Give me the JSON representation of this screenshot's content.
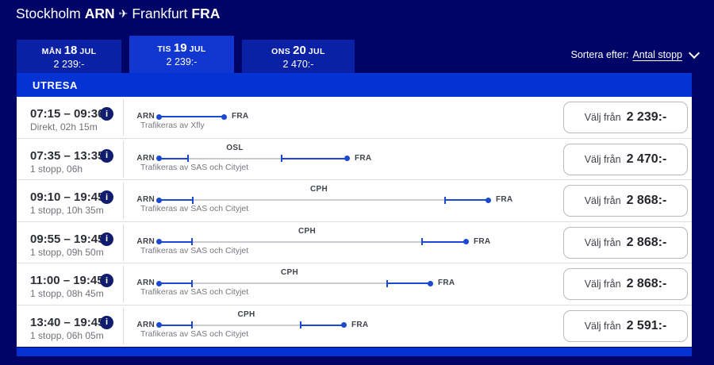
{
  "header": {
    "from_city": "Stockholm",
    "from_code": "ARN",
    "to_city": "Frankfurt",
    "to_code": "FRA"
  },
  "icons": {
    "plane": "✈",
    "info": "i"
  },
  "sort": {
    "label": "Sortera efter:",
    "value": "Antal stopp"
  },
  "date_tabs": [
    {
      "day": "MÅN",
      "daynum": "18",
      "mon": "JUL",
      "price": "2 239:-",
      "selected": false
    },
    {
      "day": "TIS",
      "daynum": "19",
      "mon": "JUL",
      "price": "2 239:-",
      "selected": true
    },
    {
      "day": "ONS",
      "daynum": "20",
      "mon": "JUL",
      "price": "2 470:-",
      "selected": false
    }
  ],
  "section": {
    "title": "UTRESA"
  },
  "buttons": {
    "select_prefix": "Välj från"
  },
  "flights": [
    {
      "times": "07:15 – 09:30",
      "details": "Direkt, 02h 15m",
      "operator": "Trafikeras av Xfly",
      "price": "2 239:-",
      "route": {
        "from": "ARN",
        "to": "FRA",
        "stop": null,
        "leg1": 83,
        "layover": 0,
        "leg2": 0
      }
    },
    {
      "times": "07:35 – 13:35",
      "details": "1 stopp, 06h",
      "operator": "Trafikeras av SAS och Cityjet",
      "price": "2 470:-",
      "route": {
        "from": "ARN",
        "to": "FRA",
        "stop": "OSL",
        "leg1": 37,
        "layover": 118,
        "leg2": 83
      }
    },
    {
      "times": "09:10 – 19:45",
      "details": "1 stopp, 10h 35m",
      "operator": "Trafikeras av SAS och Cityjet",
      "price": "2 868:-",
      "route": {
        "from": "ARN",
        "to": "FRA",
        "stop": "CPH",
        "leg1": 43,
        "layover": 318,
        "leg2": 55
      }
    },
    {
      "times": "09:55 – 19:45",
      "details": "1 stopp, 09h 50m",
      "operator": "Trafikeras av SAS och Cityjet",
      "price": "2 868:-",
      "route": {
        "from": "ARN",
        "to": "FRA",
        "stop": "CPH",
        "leg1": 42,
        "layover": 290,
        "leg2": 56
      }
    },
    {
      "times": "11:00 – 19:45",
      "details": "1 stopp, 08h 45m",
      "operator": "Trafikeras av SAS och Cityjet",
      "price": "2 868:-",
      "route": {
        "from": "ARN",
        "to": "FRA",
        "stop": "CPH",
        "leg1": 42,
        "layover": 246,
        "leg2": 55
      }
    },
    {
      "times": "13:40 – 19:45",
      "details": "1 stopp, 06h 05m",
      "operator": "Trafikeras av SAS och Cityjet",
      "price": "2 591:-",
      "route": {
        "from": "ARN",
        "to": "FRA",
        "stop": "CPH",
        "leg1": 42,
        "layover": 137,
        "leg2": 55
      }
    }
  ],
  "colors": {
    "page_background": "#000466",
    "tab": "#0a21a6",
    "tab_selected": "#1137d0",
    "section_bar": "#0533d3",
    "route_blue": "#1b49d1",
    "panel": "#ffffff"
  }
}
